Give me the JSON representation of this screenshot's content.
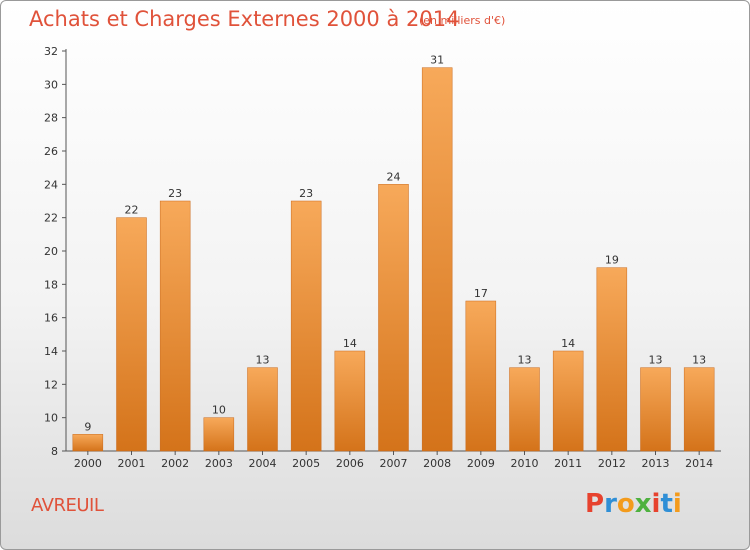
{
  "header": {
    "title": "Achats et Charges Externes 2000 à 2014",
    "subtitle": "(en milliers d'€)"
  },
  "footer": {
    "city": "AVREUIL",
    "logo_text": "Proxiti",
    "logo_colors": [
      "#e7422e",
      "#2f8fd6",
      "#f39b1c",
      "#4eb13f",
      "#e7422e",
      "#2f8fd6",
      "#f39b1c"
    ]
  },
  "colors": {
    "bar_top": "#f7a95a",
    "bar_bottom": "#d4731a",
    "axis": "#555555",
    "title": "#e0523a"
  },
  "chart_data": {
    "type": "bar",
    "title": "Achats et Charges Externes 2000 à 2014",
    "subtitle": "(en milliers d'€)",
    "categories": [
      "2000",
      "2001",
      "2002",
      "2003",
      "2004",
      "2005",
      "2006",
      "2007",
      "2008",
      "2009",
      "2010",
      "2011",
      "2012",
      "2013",
      "2014"
    ],
    "values": [
      9,
      22,
      23,
      10,
      13,
      23,
      14,
      24,
      31,
      17,
      13,
      14,
      19,
      13,
      13
    ],
    "ylim": [
      8,
      32
    ],
    "yticks": [
      8,
      10,
      12,
      14,
      16,
      18,
      20,
      22,
      24,
      26,
      28,
      30,
      32
    ],
    "grid": false,
    "xlabel": "",
    "ylabel": ""
  }
}
